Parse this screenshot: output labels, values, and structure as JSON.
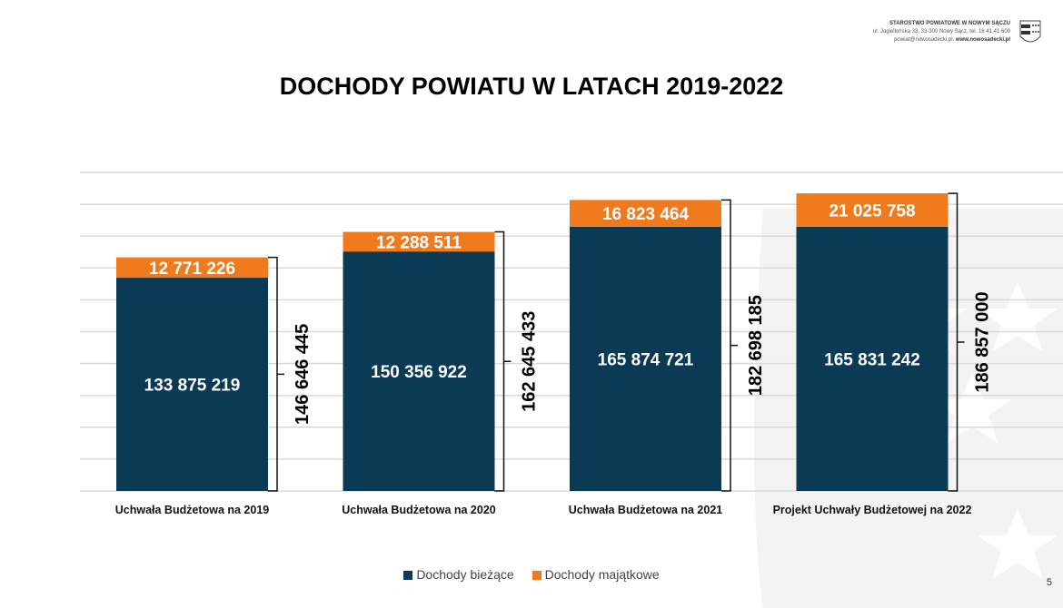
{
  "header": {
    "org": "STAROSTWO POWIATOWE W NOWYM SĄCZU",
    "address": "ul. Jagiellońska 33, 33-300 Nowy Sącz, tel. 18 41 41 600",
    "email": "powiat@nowosadecki.pl,",
    "website": "www.nowosadecki.pl"
  },
  "page_number": "5",
  "colors": {
    "current": "#0b3a55",
    "capital": "#f07a1e",
    "grid": "#d9d9d9"
  },
  "chart_data": {
    "type": "bar",
    "stacked": true,
    "title": "DOCHODY POWIATU W LATACH 2019-2022",
    "categories": [
      "Uchwała Budżetowa na 2019",
      "Uchwała Budżetowa na 2020",
      "Uchwała Budżetowa na 2021",
      "Projekt Uchwały Budżetowej na 2022"
    ],
    "series": [
      {
        "name": "Dochody bieżące",
        "values": [
          133875219,
          150356922,
          165874721,
          165831242
        ],
        "labels": [
          "133 875 219",
          "150 356 922",
          "165 874 721",
          "165 831 242"
        ]
      },
      {
        "name": "Dochody majątkowe",
        "values": [
          12771226,
          12288511,
          16823464,
          21025758
        ],
        "labels": [
          "12 771 226",
          "12 288 511",
          "16 823 464",
          "21 025 758"
        ]
      }
    ],
    "totals": [
      146646445,
      162645433,
      182698185,
      186857000
    ],
    "total_labels": [
      "146 646 445",
      "162 645 433",
      "182 698 185",
      "186 857 000"
    ],
    "ylim": [
      0,
      200000000
    ],
    "ytick_step": 20000000,
    "grid": true,
    "yaxis_labels_visible": false,
    "legend_position": "bottom"
  }
}
